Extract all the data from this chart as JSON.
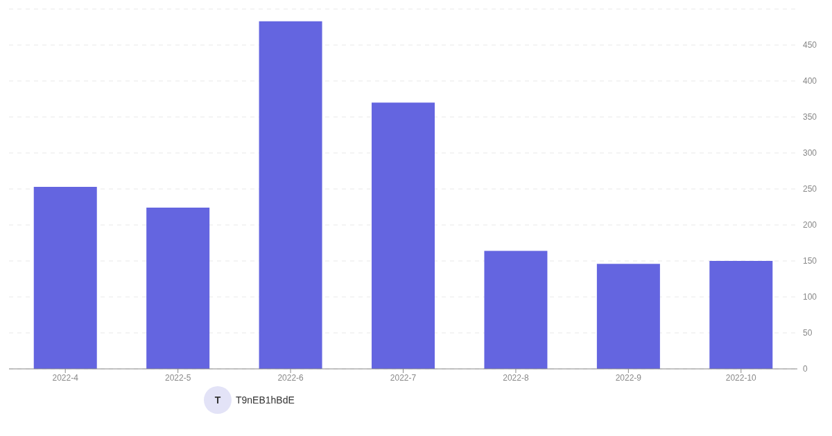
{
  "chart_data": {
    "type": "bar",
    "categories": [
      "2022-4",
      "2022-5",
      "2022-6",
      "2022-7",
      "2022-8",
      "2022-9",
      "2022-10"
    ],
    "values": [
      253,
      224,
      483,
      370,
      164,
      146,
      150
    ],
    "color": "#6465e0",
    "ylim": [
      0,
      500
    ],
    "yticks": [
      0,
      50,
      100,
      150,
      200,
      250,
      300,
      350,
      400,
      450
    ],
    "grid": "y",
    "annotations": [
      "T",
      "T9nEB1hBdE"
    ]
  }
}
